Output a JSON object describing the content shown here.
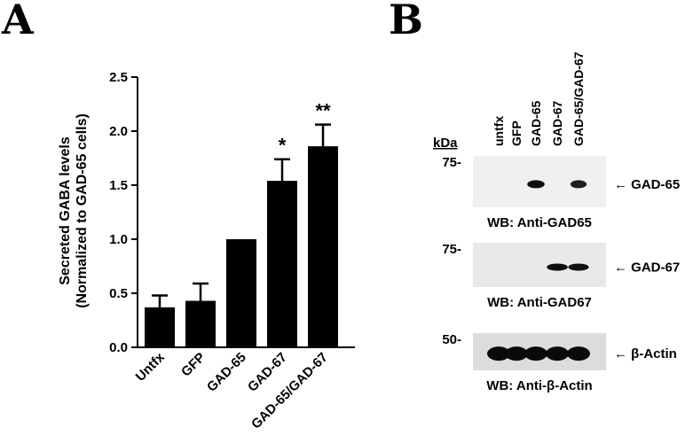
{
  "panels": {
    "a_label": "A",
    "b_label": "B"
  },
  "chart_data": {
    "type": "bar",
    "categories": [
      "Untfx",
      "GFP",
      "GAD-65",
      "GAD-67",
      "GAD-65/GAD-67"
    ],
    "values": [
      0.37,
      0.43,
      1.0,
      1.54,
      1.86
    ],
    "errors": [
      0.11,
      0.16,
      0.0,
      0.2,
      0.2
    ],
    "significance": [
      "",
      "",
      "",
      "*",
      "**"
    ],
    "ylabel_line1": "Secreted GABA levels",
    "ylabel_line2": "(Normalized to GAD-65 cells)",
    "ylim": [
      0,
      2.5
    ],
    "yticks": [
      "0.0",
      "0.5",
      "1.0",
      "1.5",
      "2.0",
      "2.5"
    ],
    "bar_color": "#000000",
    "grid": false
  },
  "blot": {
    "lanes": [
      "untfx",
      "GFP",
      "GAD-65",
      "GAD-67",
      "GAD-65/GAD-67"
    ],
    "kda_header": "kDa",
    "rows": [
      {
        "marker": "75-",
        "target": "← GAD-65",
        "caption": "WB: Anti-GAD65",
        "bands": [
          0,
          0,
          0.9,
          0,
          0.6
        ]
      },
      {
        "marker": "75-",
        "target": "← GAD-67",
        "caption": "WB: Anti-GAD67",
        "bands": [
          0,
          0,
          0,
          0.95,
          0.85
        ]
      },
      {
        "marker": "50-",
        "target": "← β-Actin",
        "caption": "WB: Anti-β-Actin",
        "bands": [
          1,
          1,
          1,
          1,
          1
        ]
      }
    ]
  }
}
